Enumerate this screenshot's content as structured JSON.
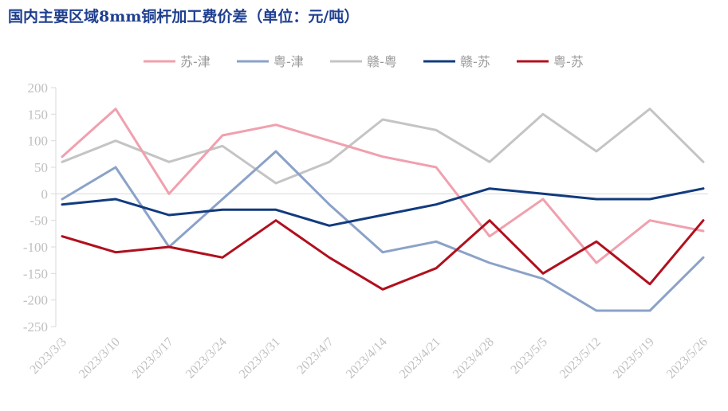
{
  "title": "国内主要区域8mm铜杆加工费价差（单位：元/吨）",
  "chart_data": {
    "type": "line",
    "title": "国内主要区域8mm铜杆加工费价差（单位：元/吨）",
    "xlabel": "",
    "ylabel": "",
    "ylim": [
      -250,
      200
    ],
    "yticks": [
      200,
      150,
      100,
      50,
      0,
      -50,
      -100,
      -150,
      -200,
      -250
    ],
    "grid": false,
    "legend_position": "top",
    "categories": [
      "2023/3/3",
      "2023/3/10",
      "2023/3/17",
      "2023/3/24",
      "2023/3/31",
      "2023/4/7",
      "2023/4/14",
      "2023/4/21",
      "2023/4/28",
      "2023/5/5",
      "2023/5/12",
      "2023/5/19",
      "2023/5/26"
    ],
    "series": [
      {
        "name": "苏-津",
        "color": "#f0a0ae",
        "values": [
          70,
          160,
          0,
          110,
          130,
          100,
          70,
          50,
          -80,
          -10,
          -130,
          -50,
          -70
        ]
      },
      {
        "name": "粤-津",
        "color": "#8ba2c8",
        "values": [
          -10,
          50,
          -100,
          -10,
          80,
          -20,
          -110,
          -90,
          -130,
          -160,
          -220,
          -220,
          -120
        ]
      },
      {
        "name": "赣-粤",
        "color": "#c4c4c4",
        "values": [
          60,
          100,
          60,
          90,
          20,
          60,
          140,
          120,
          60,
          150,
          80,
          160,
          60
        ]
      },
      {
        "name": "赣-苏",
        "color": "#123b7e",
        "values": [
          -20,
          -10,
          -40,
          -30,
          -30,
          -60,
          -40,
          -20,
          10,
          0,
          -10,
          -10,
          10
        ]
      },
      {
        "name": "粤-苏",
        "color": "#b0101e",
        "values": [
          -80,
          -110,
          -100,
          -120,
          -50,
          -120,
          -180,
          -140,
          -50,
          -150,
          -90,
          -170,
          -50
        ]
      }
    ]
  }
}
